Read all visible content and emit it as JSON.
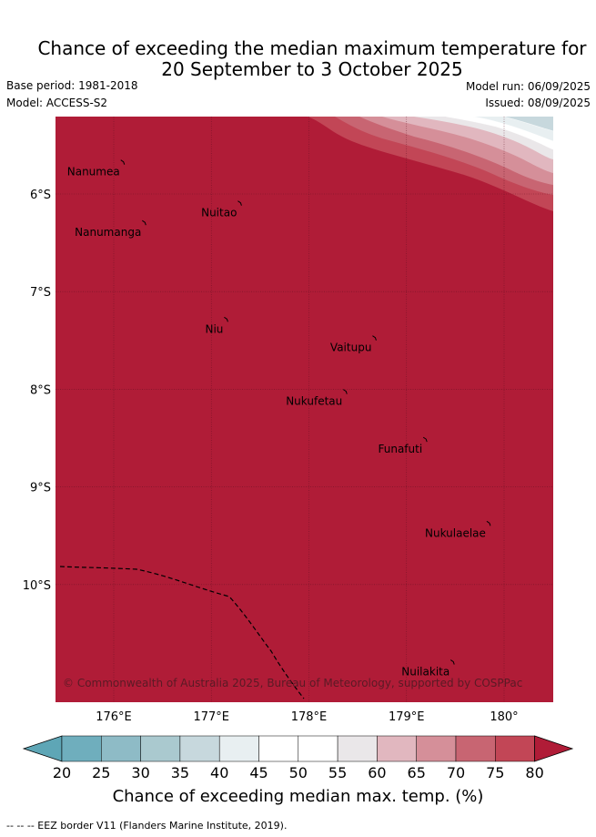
{
  "title": {
    "line1": "Chance of exceeding the median maximum temperature for",
    "line2": "20 September to 3 October 2025"
  },
  "meta": {
    "base_period": "Base period: 1981-2018",
    "model": "Model: ACCESS-S2",
    "model_run": "Model run: 06/09/2025",
    "issued": "Issued: 08/09/2025"
  },
  "map": {
    "lon_range": [
      175.5,
      180.5
    ],
    "lat_range": [
      -11.2,
      -5.2
    ],
    "lon_ticks": [
      {
        "value": 176,
        "label": "176°E"
      },
      {
        "value": 177,
        "label": "177°E"
      },
      {
        "value": 178,
        "label": "178°E"
      },
      {
        "value": 179,
        "label": "179°E"
      },
      {
        "value": 180,
        "label": "180°"
      }
    ],
    "lat_ticks": [
      {
        "value": -6,
        "label": "6°S"
      },
      {
        "value": -7,
        "label": "7°S"
      },
      {
        "value": -8,
        "label": "8°S"
      },
      {
        "value": -9,
        "label": "9°S"
      },
      {
        "value": -10,
        "label": "10°S"
      }
    ],
    "background_color": "#b01c37",
    "islands": [
      {
        "name": "Nanumea",
        "lon": 176.1,
        "lat": -5.68
      },
      {
        "name": "Nuitao",
        "lon": 177.3,
        "lat": -6.1
      },
      {
        "name": "Nanumanga",
        "lon": 176.32,
        "lat": -6.3
      },
      {
        "name": "Niu",
        "lon": 177.16,
        "lat": -7.29
      },
      {
        "name": "Vaitupu",
        "lon": 178.68,
        "lat": -7.48
      },
      {
        "name": "Nukufetau",
        "lon": 178.38,
        "lat": -8.03
      },
      {
        "name": "Funafuti",
        "lon": 179.2,
        "lat": -8.52
      },
      {
        "name": "Nukulaelae",
        "lon": 179.85,
        "lat": -9.38
      },
      {
        "name": "Nuilakita",
        "lon": 179.48,
        "lat": -10.8
      }
    ],
    "copyright": "© Commonwealth of Australia 2025, Bureau of Meteorology, supported by COSPPac"
  },
  "colorbar": {
    "ticks": [
      "20",
      "25",
      "30",
      "35",
      "40",
      "45",
      "50",
      "55",
      "60",
      "65",
      "70",
      "75",
      "80"
    ],
    "colors": [
      "#5ea6b6",
      "#6faebd",
      "#8ebbc6",
      "#aac9cf",
      "#c7d8dd",
      "#e8eff1",
      "#ffffff",
      "#ffffff",
      "#eae7e9",
      "#e1b7bf",
      "#d58f99",
      "#c86572",
      "#c24656",
      "#b01c37"
    ],
    "title": "Chance of exceeding median max. temp. (%)"
  },
  "footnote": "--  --  -- EEZ border V11 (Flanders Marine Institute, 2019)."
}
